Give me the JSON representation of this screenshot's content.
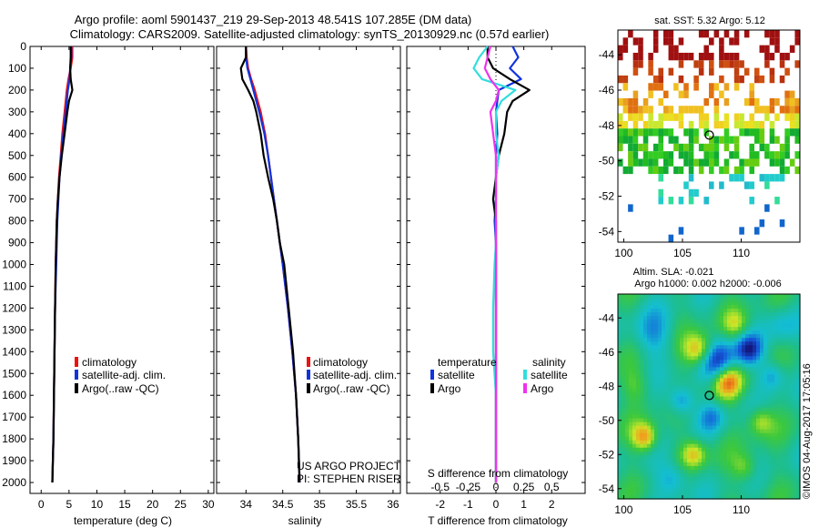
{
  "header": {
    "title_line1": "Argo profile: aoml 5901437_219 29-Sep-2013 48.541S 107.285E (DM data)",
    "title_line2": "Climatology: CARS2009. Satellite-adjusted climatology: synTS_20130929.nc (0.57d earlier)"
  },
  "colors": {
    "climatology": "#ee1111",
    "satellite": "#1133dd",
    "argo": "#000000",
    "sat_salinity": "#33dddd",
    "argo_salinity": "#ee33ee"
  },
  "chart_data": [
    {
      "id": "temperature",
      "type": "line",
      "xlabel": "temperature (deg C)",
      "xlim": [
        -2,
        31
      ],
      "xticks": [
        0,
        5,
        10,
        15,
        20,
        25,
        30
      ],
      "xtick_labels": [
        "0",
        "5",
        "10",
        "15",
        "20",
        "25",
        "30"
      ],
      "ylim": [
        0,
        2050
      ],
      "yticks": [
        0,
        100,
        200,
        300,
        400,
        500,
        600,
        700,
        800,
        900,
        1000,
        1100,
        1200,
        1300,
        1400,
        1500,
        1600,
        1700,
        1800,
        1900,
        2000
      ],
      "ytick_labels": [
        "0",
        "100",
        "200",
        "300",
        "400",
        "500",
        "600",
        "700",
        "800",
        "900",
        "1000",
        "1100",
        "1200",
        "1300",
        "1400",
        "1500",
        "1600",
        "1700",
        "1800",
        "1900",
        "2000"
      ],
      "legend": {
        "position": "lower-center",
        "entries": [
          "climatology",
          "satellite-adj. clim.",
          "Argo(..raw -QC)"
        ]
      },
      "series": [
        {
          "name": "climatology",
          "color": "#ee1111",
          "x": [
            5.6,
            5.6,
            5.3,
            4.9,
            4.6,
            4.4,
            4.2,
            3.8,
            3.5,
            3.2,
            3.0,
            2.8,
            2.7,
            2.6,
            2.5,
            2.4,
            2.3,
            2.2,
            2.1,
            2.0
          ],
          "y": [
            0,
            50,
            100,
            150,
            200,
            250,
            300,
            400,
            500,
            600,
            700,
            800,
            900,
            1000,
            1200,
            1400,
            1600,
            1800,
            1900,
            2000
          ]
        },
        {
          "name": "satellite-adj. clim.",
          "color": "#1133dd",
          "x": [
            5.4,
            5.4,
            5.2,
            5.1,
            4.8,
            4.6,
            4.4,
            4.0,
            3.6,
            3.3,
            3.1,
            2.9,
            2.8,
            2.7,
            2.5,
            2.4,
            2.3,
            2.2,
            2.1,
            2.0
          ],
          "y": [
            0,
            50,
            100,
            150,
            200,
            250,
            300,
            400,
            500,
            600,
            700,
            800,
            900,
            1000,
            1200,
            1400,
            1600,
            1800,
            1900,
            2000
          ]
        },
        {
          "name": "Argo(..raw -QC)",
          "color": "#000000",
          "x": [
            5.3,
            5.3,
            5.2,
            5.3,
            5.6,
            5.0,
            4.7,
            4.2,
            3.7,
            3.3,
            3.0,
            2.8,
            2.7,
            2.6,
            2.5,
            2.4,
            2.3,
            2.2,
            2.1,
            2.0
          ],
          "y": [
            0,
            50,
            100,
            150,
            200,
            250,
            300,
            400,
            500,
            600,
            700,
            800,
            900,
            1000,
            1200,
            1400,
            1600,
            1800,
            1900,
            2000
          ]
        }
      ]
    },
    {
      "id": "salinity",
      "type": "line",
      "xlabel": "salinity",
      "xlim": [
        33.6,
        36.1
      ],
      "xticks": [
        34,
        34.5,
        35,
        35.5,
        36
      ],
      "xtick_labels": [
        "34",
        "34.5",
        "35",
        "35.5",
        "36"
      ],
      "ylim": [
        0,
        2050
      ],
      "legend": {
        "position": "lower-center",
        "entries": [
          "climatology",
          "satellite-adj. clim.",
          "Argo(..raw -QC)"
        ]
      },
      "annotations": [
        "US ARGO PROJECT",
        "PI: STEPHEN RISER"
      ],
      "series": [
        {
          "name": "climatology",
          "color": "#ee1111",
          "x": [
            34.0,
            34.01,
            34.03,
            34.07,
            34.12,
            34.16,
            34.2,
            34.26,
            34.3,
            34.34,
            34.38,
            34.42,
            34.46,
            34.5,
            34.57,
            34.63,
            34.68,
            34.71,
            34.72,
            34.73
          ],
          "y": [
            0,
            50,
            100,
            150,
            200,
            250,
            300,
            400,
            500,
            600,
            700,
            800,
            900,
            1000,
            1200,
            1400,
            1600,
            1800,
            1900,
            2000
          ]
        },
        {
          "name": "satellite-adj. clim.",
          "color": "#1133dd",
          "x": [
            34.0,
            34.0,
            34.02,
            34.06,
            34.1,
            34.14,
            34.18,
            34.25,
            34.3,
            34.34,
            34.38,
            34.42,
            34.46,
            34.5,
            34.57,
            34.63,
            34.68,
            34.71,
            34.72,
            34.73
          ],
          "y": [
            0,
            50,
            100,
            150,
            200,
            250,
            300,
            400,
            500,
            600,
            700,
            800,
            900,
            1000,
            1200,
            1400,
            1600,
            1800,
            1900,
            2000
          ]
        },
        {
          "name": "Argo(..raw -QC)",
          "color": "#000000",
          "x": [
            34.0,
            34.0,
            33.93,
            33.95,
            34.03,
            34.1,
            34.14,
            34.2,
            34.24,
            34.3,
            34.37,
            34.42,
            34.46,
            34.52,
            34.58,
            34.64,
            34.68,
            34.71,
            34.72,
            34.73
          ],
          "y": [
            0,
            50,
            100,
            150,
            200,
            250,
            300,
            400,
            500,
            600,
            700,
            800,
            900,
            1000,
            1200,
            1400,
            1600,
            1800,
            1900,
            2000
          ]
        }
      ]
    },
    {
      "id": "difference",
      "type": "line",
      "xlabel": "T difference from climatology",
      "xlabel_top": "S difference from climatology",
      "xlim": [
        -3.2,
        3.2
      ],
      "xticks": [
        -2,
        -1,
        0,
        1,
        2
      ],
      "xtick_labels": [
        "-2",
        "-1",
        "0",
        "1",
        "2"
      ],
      "xticks_top_values": [
        -2,
        -1,
        0,
        1,
        2
      ],
      "xtick_labels_top": [
        "-0.5",
        "-0.25",
        "0",
        "0.25",
        "0.5"
      ],
      "ylim": [
        0,
        2050
      ],
      "legend": {
        "position": "lower-center",
        "headers": [
          "temperature",
          "salinity"
        ],
        "entries": [
          "satellite",
          "Argo",
          "satellite",
          "Argo"
        ]
      },
      "series": [
        {
          "name": "temperature satellite",
          "color": "#1133dd",
          "x": [
            0.6,
            0.8,
            0.5,
            0.9,
            0.1,
            0.05,
            0.0,
            0.05,
            0.0,
            0.0,
            0.0,
            -0.05,
            0.0,
            0.0,
            0.0,
            0.0,
            0.0,
            0.0,
            0.0,
            0.0
          ],
          "y": [
            0,
            50,
            100,
            150,
            200,
            250,
            300,
            400,
            500,
            600,
            700,
            800,
            900,
            1000,
            1200,
            1400,
            1600,
            1800,
            1900,
            2000
          ]
        },
        {
          "name": "temperature Argo",
          "color": "#000000",
          "x": [
            -0.3,
            -0.3,
            -0.1,
            0.5,
            1.2,
            0.6,
            0.4,
            0.3,
            0.1,
            0.0,
            -0.1,
            0.0,
            0.0,
            0.0,
            0.0,
            0.0,
            0.0,
            0.0,
            0.0,
            0.0
          ],
          "y": [
            0,
            50,
            100,
            150,
            200,
            250,
            300,
            400,
            500,
            600,
            700,
            800,
            900,
            1000,
            1200,
            1400,
            1600,
            1800,
            1900,
            2000
          ]
        },
        {
          "name": "salinity satellite",
          "color": "#33dddd",
          "x": [
            -0.3,
            -0.6,
            -0.8,
            -0.5,
            0.7,
            0.2,
            0.0,
            0.0,
            0.1,
            0.0,
            0.0,
            0.0,
            0.0,
            -0.05,
            -0.1,
            -0.1,
            0.0,
            0.0,
            0.0,
            0.0
          ],
          "y": [
            0,
            50,
            100,
            150,
            200,
            250,
            300,
            400,
            500,
            600,
            700,
            800,
            900,
            1000,
            1200,
            1400,
            1600,
            1800,
            1900,
            2000
          ]
        },
        {
          "name": "salinity Argo",
          "color": "#ee33ee",
          "x": [
            -0.2,
            -0.3,
            -0.4,
            -0.2,
            0.1,
            0.0,
            -0.2,
            -0.1,
            0.0,
            0.0,
            0.0,
            0.0,
            0.0,
            0.0,
            0.0,
            0.0,
            0.0,
            0.0,
            0.0,
            0.0
          ],
          "y": [
            0,
            50,
            100,
            150,
            200,
            250,
            300,
            400,
            500,
            600,
            700,
            800,
            900,
            1000,
            1200,
            1400,
            1600,
            1800,
            1900,
            2000
          ]
        }
      ]
    },
    {
      "id": "sst_map",
      "type": "heatmap",
      "title": "sat. SST: 5.32 Argo: 5.12",
      "xlim": [
        99.5,
        115
      ],
      "ylim": [
        -54.6,
        -42.6
      ],
      "xticks": [
        100,
        105,
        110
      ],
      "xtick_labels": [
        "100",
        "105",
        "110"
      ],
      "yticks": [
        -44,
        -46,
        -48,
        -50,
        -52,
        -54
      ],
      "ytick_labels": [
        "-44",
        "-46",
        "-48",
        "-50",
        "-52",
        "-54"
      ],
      "marker": {
        "lon": 107.285,
        "lat": -48.541
      }
    },
    {
      "id": "sla_map",
      "type": "heatmap",
      "title_line1": "Altim. SLA: -0.021",
      "title_line2": "Argo h1000: 0.002 h2000: -0.006",
      "xlim": [
        99.5,
        115
      ],
      "ylim": [
        -54.6,
        -42.6
      ],
      "xticks": [
        100,
        105,
        110
      ],
      "xtick_labels": [
        "100",
        "105",
        "110"
      ],
      "yticks": [
        -44,
        -46,
        -48,
        -50,
        -52,
        -54
      ],
      "ytick_labels": [
        "-44",
        "-46",
        "-48",
        "-50",
        "-52",
        "-54"
      ],
      "marker": {
        "lon": 107.285,
        "lat": -48.541
      }
    }
  ],
  "watermark": "©IMOS 04-Aug-2017 17:05:16"
}
